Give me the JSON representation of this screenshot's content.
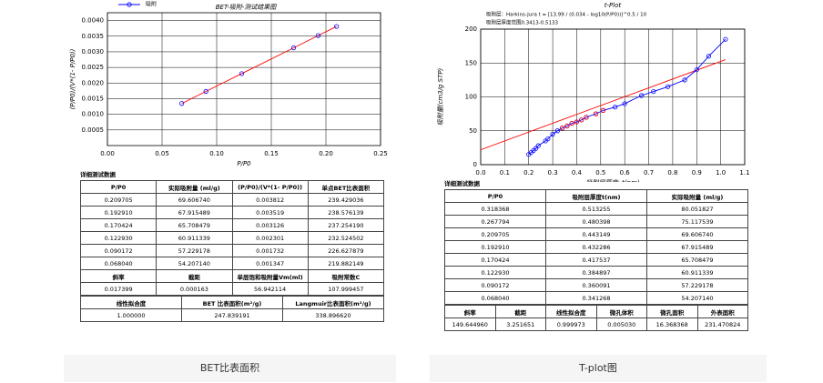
{
  "chart_data": [
    {
      "type": "scatter-line",
      "title": "BET-吸附-测试结果图",
      "x_label": "P/P0",
      "y_label": "(P/P0)/(V*(1- P/P0))",
      "legend": "top-left",
      "grid": true,
      "xlim": [
        0,
        0.25
      ],
      "ylim": [
        0,
        0.00425
      ],
      "xticks": [
        {
          "value": 0,
          "label": "0.00"
        },
        0.05,
        {
          "value": 0.1,
          "label": "0.10"
        },
        0.15,
        {
          "value": 0.2,
          "label": "0.20"
        },
        0.25
      ],
      "yticks": [
        0.0005,
        {
          "value": 0.001,
          "label": "0.0010"
        },
        0.0015,
        {
          "value": 0.002,
          "label": "0.0020"
        },
        0.0025,
        {
          "value": 0.003,
          "label": "0.0030"
        },
        0.0035,
        {
          "value": 0.004,
          "label": "0.0040"
        }
      ],
      "series": [
        {
          "name": "吸附",
          "color": "#0000ff",
          "line_color": "#ff0000",
          "markers": true,
          "x": [
            0.06804,
            0.090172,
            0.12293,
            0.170424,
            0.19291,
            0.209705
          ],
          "values": [
            0.001347,
            0.001732,
            0.002301,
            0.003126,
            0.003519,
            0.003812
          ]
        }
      ]
    },
    {
      "type": "scatter-line",
      "title": "t-Plot",
      "annotations": [
        "吸附层：Harkins-Jura t = [13.99 / (0.034 - log10(P/P0))]^0.5 / 10",
        "吸附层厚度范围0.3413-0.5133"
      ],
      "x_label": "吸附层厚度: t(nm)",
      "y_label": "吸附量(cm3/g STP)",
      "grid": true,
      "xlim": [
        0,
        1.1
      ],
      "ylim": [
        0,
        200
      ],
      "xticks": [
        {
          "value": 0,
          "label": "0.0"
        },
        0.1,
        0.2,
        0.3,
        0.4,
        0.5,
        0.6,
        0.7,
        0.8,
        0.9,
        {
          "value": 1,
          "label": "1.0"
        },
        1.1
      ],
      "yticks": [
        0,
        50,
        100,
        150,
        200
      ],
      "series": [
        {
          "color": "#ff0000",
          "line_color": "#ff0000",
          "markers": false,
          "x": [
            0,
            1.02
          ],
          "values": [
            22,
            155
          ]
        },
        {
          "color": "#0000ff",
          "line_color": "#0000ff",
          "markers": true,
          "x": [
            0.2,
            0.21,
            0.22,
            0.23,
            0.24,
            0.27,
            0.28,
            0.3,
            0.32,
            0.34,
            0.36,
            0.38,
            0.4,
            0.42,
            0.44,
            0.48,
            0.51,
            0.56,
            0.6,
            0.67,
            0.72,
            0.78,
            0.85,
            0.9,
            0.95,
            1.02
          ],
          "values": [
            15,
            18,
            21,
            24,
            28,
            35,
            38,
            45,
            50,
            54,
            57,
            61,
            63,
            66,
            70,
            75,
            80,
            85,
            90,
            102,
            108,
            115,
            125,
            140,
            160,
            185
          ]
        },
        {
          "color": "#ff0000",
          "markers": true,
          "x": [
            0.34,
            0.36,
            0.38,
            0.4,
            0.42,
            0.44,
            0.48,
            0.51
          ],
          "values": [
            54,
            57,
            61,
            63,
            66,
            70,
            75,
            80
          ]
        }
      ]
    }
  ],
  "tables": [
    {
      "title": "详细测试数据",
      "blocks": [
        [
          [
            "P/P0",
            "实际吸附量 (ml/g)",
            "(P/P0)/(V*(1- P/P0))",
            "单点BET比表面积"
          ],
          [
            "0.209705",
            "69.606740",
            "0.003812",
            "239.429036"
          ],
          [
            "0.192910",
            "67.915489",
            "0.003519",
            "238.576139"
          ],
          [
            "0.170424",
            "65.708479",
            "0.003126",
            "237.254190"
          ],
          [
            "0.122930",
            "60.911339",
            "0.002301",
            "232.524502"
          ],
          [
            "0.090172",
            "57.229178",
            "0.001732",
            "226.627879"
          ],
          [
            "0.068040",
            "54.207140",
            "0.001347",
            "219.882149"
          ],
          [
            "斜率",
            "截距",
            "单层饱和吸附量Vm(ml)",
            "吸附常数C"
          ],
          [
            "0.017399",
            "0.000163",
            "56.942114",
            "107.999457"
          ]
        ],
        [
          [
            "线性拟合度",
            "BET 比表面积(m²/g)",
            "Langmuir比表面积(m²/g)"
          ],
          [
            "1.000000",
            "247.839191",
            "338.896620"
          ]
        ]
      ]
    },
    {
      "title": "详细测试数据",
      "blocks": [
        [
          [
            "P/P0",
            "吸附层厚度t(nm)",
            "实际吸附量 (ml/g)"
          ],
          [
            "0.318368",
            "0.513255",
            "80.051827"
          ],
          [
            "0.267794",
            "0.480398",
            "75.117539"
          ],
          [
            "0.209705",
            "0.443149",
            "69.606740"
          ],
          [
            "0.192910",
            "0.432286",
            "67.915489"
          ],
          [
            "0.170424",
            "0.417537",
            "65.708479"
          ],
          [
            "0.122930",
            "0.384897",
            "60.911339"
          ],
          [
            "0.090172",
            "0.360091",
            "57.229178"
          ],
          [
            "0.068040",
            "0.341268",
            "54.207140"
          ]
        ],
        [
          [
            "斜率",
            "截距",
            "线性拟合度",
            "微孔体积",
            "微孔面积",
            "外表面积"
          ],
          [
            "149.644960",
            "3.251651",
            "0.999973",
            "0.005030",
            "16.368368",
            "231.470824"
          ]
        ]
      ]
    }
  ],
  "captions": [
    "BET比表面积",
    "T-plot图"
  ]
}
